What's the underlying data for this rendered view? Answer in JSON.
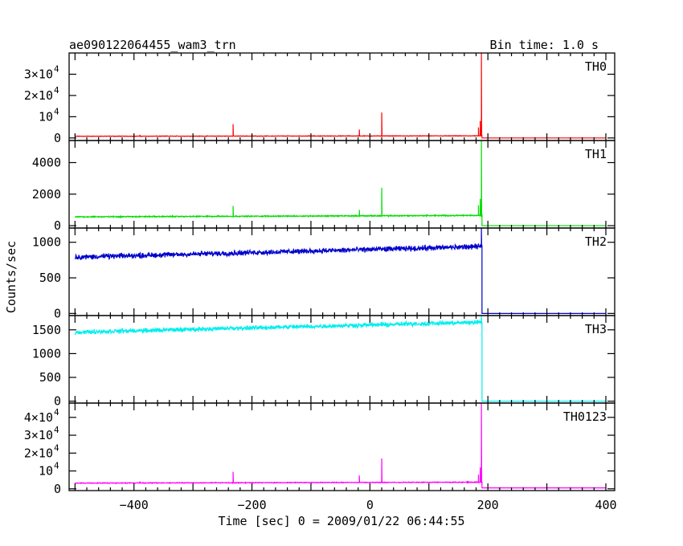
{
  "header": {
    "title": "ae090122064455_wam3_trn",
    "bin_time": "Bin time: 1.0 s"
  },
  "chart_data": {
    "type": "line",
    "title": "ae090122064455_wam3_trn",
    "xlabel": "Time [sec] 0 = 2009/01/22 06:44:55",
    "ylabel": "Counts/sec",
    "xlim": [
      -510,
      415
    ],
    "x_ticks": [
      -400,
      -200,
      0,
      200,
      400
    ],
    "panels": [
      {
        "name": "TH0",
        "color": "#ff0000",
        "ylim": [
          -1200,
          40000
        ],
        "y_ticks": [
          {
            "v": 0,
            "t": "0"
          },
          {
            "v": 10000,
            "t": "10",
            "sup": "4"
          },
          {
            "v": 20000,
            "t": "2×10",
            "sup": "4"
          },
          {
            "v": 30000,
            "t": "3×10",
            "sup": "4"
          }
        ],
        "segments": [
          {
            "x0": -500,
            "x1": 190,
            "y0": 800,
            "y1": 1000,
            "noise": 150
          },
          {
            "x0": 190,
            "x1": 400,
            "y0": 0,
            "y1": 0,
            "noise": 0
          }
        ],
        "spikes": [
          {
            "x": -232,
            "y": 6500
          },
          {
            "x": -390,
            "y": 1500
          },
          {
            "x": -18,
            "y": 4000
          },
          {
            "x": 20,
            "y": 12000
          },
          {
            "x": 184,
            "y": 5000
          },
          {
            "x": 187,
            "y": 8000
          },
          {
            "x": 189,
            "y": 40000
          }
        ]
      },
      {
        "name": "TH1",
        "color": "#00dd00",
        "ylim": [
          -150,
          5400
        ],
        "y_ticks": [
          {
            "v": 0,
            "t": "0"
          },
          {
            "v": 2000,
            "t": "2000"
          },
          {
            "v": 4000,
            "t": "4000"
          }
        ],
        "segments": [
          {
            "x0": -500,
            "x1": 190,
            "y0": 560,
            "y1": 650,
            "noise": 40
          },
          {
            "x0": 190,
            "x1": 400,
            "y0": 0,
            "y1": 0,
            "noise": 0
          }
        ],
        "spikes": [
          {
            "x": -232,
            "y": 1250
          },
          {
            "x": -18,
            "y": 1000
          },
          {
            "x": 20,
            "y": 2400
          },
          {
            "x": 184,
            "y": 1300
          },
          {
            "x": 187,
            "y": 1700
          },
          {
            "x": 189,
            "y": 5400
          }
        ]
      },
      {
        "name": "TH2",
        "color": "#0000cc",
        "ylim": [
          -30,
          1200
        ],
        "y_ticks": [
          {
            "v": 0,
            "t": "0"
          },
          {
            "v": 500,
            "t": "500"
          },
          {
            "v": 1000,
            "t": "1000"
          }
        ],
        "segments": [
          {
            "x0": -500,
            "x1": 190,
            "y0": 790,
            "y1": 940,
            "noise": 45
          },
          {
            "x0": 190,
            "x1": 400,
            "y0": 0,
            "y1": 0,
            "noise": 0
          }
        ],
        "spikes": [
          {
            "x": 189,
            "y": 1200
          }
        ]
      },
      {
        "name": "TH3",
        "color": "#00eeee",
        "ylim": [
          -40,
          1800
        ],
        "y_ticks": [
          {
            "v": 0,
            "t": "0"
          },
          {
            "v": 500,
            "t": "500"
          },
          {
            "v": 1000,
            "t": "1000"
          },
          {
            "v": 1500,
            "t": "1500"
          }
        ],
        "segments": [
          {
            "x0": -500,
            "x1": 190,
            "y0": 1450,
            "y1": 1660,
            "noise": 55
          },
          {
            "x0": 190,
            "x1": 400,
            "y0": 0,
            "y1": 0,
            "noise": 0
          }
        ],
        "spikes": [
          {
            "x": 189,
            "y": 1800
          }
        ]
      },
      {
        "name": "TH0123",
        "color": "#ff00ff",
        "ylim": [
          -1000,
          48000
        ],
        "y_ticks": [
          {
            "v": 0,
            "t": "0"
          },
          {
            "v": 10000,
            "t": "10",
            "sup": "4"
          },
          {
            "v": 20000,
            "t": "2×10",
            "sup": "4"
          },
          {
            "v": 30000,
            "t": "3×10",
            "sup": "4"
          },
          {
            "v": 40000,
            "t": "4×10",
            "sup": "4"
          }
        ],
        "segments": [
          {
            "x0": -500,
            "x1": 190,
            "y0": 3200,
            "y1": 3700,
            "noise": 250
          },
          {
            "x0": 190,
            "x1": 400,
            "y0": 500,
            "y1": 500,
            "noise": 0
          }
        ],
        "spikes": [
          {
            "x": -232,
            "y": 9500
          },
          {
            "x": -390,
            "y": 4200
          },
          {
            "x": -18,
            "y": 7500
          },
          {
            "x": 20,
            "y": 17000
          },
          {
            "x": 184,
            "y": 8000
          },
          {
            "x": 187,
            "y": 12000
          },
          {
            "x": 189,
            "y": 48000
          }
        ]
      }
    ]
  }
}
